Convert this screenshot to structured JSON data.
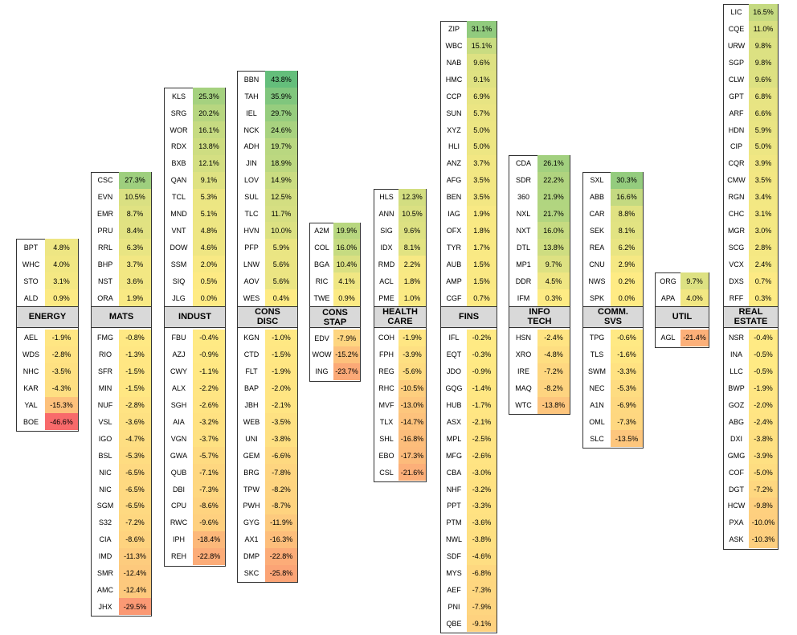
{
  "sectors": [
    {
      "label": [
        "ENERGY"
      ],
      "gainers": [
        [
          "BPT",
          4.8,
          "4.8%"
        ],
        [
          "WHC",
          4.0,
          "4.0%"
        ],
        [
          "STO",
          3.1,
          "3.1%"
        ],
        [
          "ALD",
          0.9,
          "0.9%"
        ]
      ],
      "losers": [
        [
          "AEL",
          -1.9,
          "-1.9%"
        ],
        [
          "WDS",
          -2.8,
          "-2.8%"
        ],
        [
          "NHC",
          -3.5,
          "-3.5%"
        ],
        [
          "KAR",
          -4.3,
          "-4.3%"
        ],
        [
          "YAL",
          -15.3,
          "-15.3%"
        ],
        [
          "BOE",
          -46.6,
          "-46.6%"
        ]
      ]
    },
    {
      "label": [
        "MATS"
      ],
      "gainers": [
        [
          "CSC",
          27.3,
          "27.3%"
        ],
        [
          "EVN",
          10.5,
          "10.5%"
        ],
        [
          "EMR",
          8.7,
          "8.7%"
        ],
        [
          "PRU",
          8.4,
          "8.4%"
        ],
        [
          "RRL",
          6.3,
          "6.3%"
        ],
        [
          "BHP",
          3.7,
          "3.7%"
        ],
        [
          "NST",
          3.6,
          "3.6%"
        ],
        [
          "ORA",
          1.9,
          "1.9%"
        ]
      ],
      "losers": [
        [
          "FMG",
          -0.8,
          "-0.8%"
        ],
        [
          "RIO",
          -1.3,
          "-1.3%"
        ],
        [
          "SFR",
          -1.5,
          "-1.5%"
        ],
        [
          "MIN",
          -1.5,
          "-1.5%"
        ],
        [
          "NUF",
          -2.8,
          "-2.8%"
        ],
        [
          "VSL",
          -3.6,
          "-3.6%"
        ],
        [
          "IGO",
          -4.7,
          "-4.7%"
        ],
        [
          "BSL",
          -5.3,
          "-5.3%"
        ],
        [
          "NIC",
          -6.5,
          "-6.5%"
        ],
        [
          "NIC",
          -6.5,
          "-6.5%"
        ],
        [
          "SGM",
          -6.5,
          "-6.5%"
        ],
        [
          "S32",
          -7.2,
          "-7.2%"
        ],
        [
          "CIA",
          -8.6,
          "-8.6%"
        ],
        [
          "IMD",
          -11.3,
          "-11.3%"
        ],
        [
          "SMR",
          -12.4,
          "-12.4%"
        ],
        [
          "AMC",
          -12.4,
          "-12.4%"
        ],
        [
          "JHX",
          -29.5,
          "-29.5%"
        ]
      ]
    },
    {
      "label": [
        "INDUST"
      ],
      "gainers": [
        [
          "KLS",
          25.3,
          "25.3%"
        ],
        [
          "SRG",
          20.2,
          "20.2%"
        ],
        [
          "WOR",
          16.1,
          "16.1%"
        ],
        [
          "RDX",
          13.8,
          "13.8%"
        ],
        [
          "BXB",
          12.1,
          "12.1%"
        ],
        [
          "QAN",
          9.1,
          "9.1%"
        ],
        [
          "TCL",
          5.3,
          "5.3%"
        ],
        [
          "MND",
          5.1,
          "5.1%"
        ],
        [
          "VNT",
          4.8,
          "4.8%"
        ],
        [
          "DOW",
          4.6,
          "4.6%"
        ],
        [
          "SSM",
          2.0,
          "2.0%"
        ],
        [
          "SIQ",
          0.5,
          "0.5%"
        ],
        [
          "JLG",
          0.0,
          "0.0%"
        ]
      ],
      "losers": [
        [
          "FBU",
          -0.4,
          "-0.4%"
        ],
        [
          "AZJ",
          -0.9,
          "-0.9%"
        ],
        [
          "CWY",
          -1.1,
          "-1.1%"
        ],
        [
          "ALX",
          -2.2,
          "-2.2%"
        ],
        [
          "SGH",
          -2.6,
          "-2.6%"
        ],
        [
          "AIA",
          -3.2,
          "-3.2%"
        ],
        [
          "VGN",
          -3.7,
          "-3.7%"
        ],
        [
          "GWA",
          -5.7,
          "-5.7%"
        ],
        [
          "QUB",
          -7.1,
          "-7.1%"
        ],
        [
          "DBI",
          -7.3,
          "-7.3%"
        ],
        [
          "CPU",
          -8.6,
          "-8.6%"
        ],
        [
          "RWC",
          -9.6,
          "-9.6%"
        ],
        [
          "IPH",
          -18.4,
          "-18.4%"
        ],
        [
          "REH",
          -22.8,
          "-22.8%"
        ]
      ]
    },
    {
      "label": [
        "CONS",
        "DISC"
      ],
      "gainers": [
        [
          "BBN",
          43.8,
          "43.8%"
        ],
        [
          "TAH",
          35.9,
          "35.9%"
        ],
        [
          "IEL",
          29.7,
          "29.7%"
        ],
        [
          "NCK",
          24.6,
          "24.6%"
        ],
        [
          "ADH",
          19.7,
          "19.7%"
        ],
        [
          "JIN",
          18.9,
          "18.9%"
        ],
        [
          "LOV",
          14.9,
          "14.9%"
        ],
        [
          "SUL",
          12.5,
          "12.5%"
        ],
        [
          "TLC",
          11.7,
          "11.7%"
        ],
        [
          "HVN",
          10.0,
          "10.0%"
        ],
        [
          "PFP",
          5.9,
          "5.9%"
        ],
        [
          "LNW",
          5.6,
          "5.6%"
        ],
        [
          "AOV",
          5.6,
          "5.6%"
        ],
        [
          "WES",
          0.4,
          "0.4%"
        ]
      ],
      "losers": [
        [
          "KGN",
          -1.0,
          "-1.0%"
        ],
        [
          "CTD",
          -1.5,
          "-1.5%"
        ],
        [
          "FLT",
          -1.9,
          "-1.9%"
        ],
        [
          "BAP",
          -2.0,
          "-2.0%"
        ],
        [
          "JBH",
          -2.1,
          "-2.1%"
        ],
        [
          "WEB",
          -3.5,
          "-3.5%"
        ],
        [
          "UNI",
          -3.8,
          "-3.8%"
        ],
        [
          "GEM",
          -6.6,
          "-6.6%"
        ],
        [
          "BRG",
          -7.8,
          "-7.8%"
        ],
        [
          "TPW",
          -8.2,
          "-8.2%"
        ],
        [
          "PWH",
          -8.7,
          "-8.7%"
        ],
        [
          "GYG",
          -11.9,
          "-11.9%"
        ],
        [
          "AX1",
          -16.3,
          "-16.3%"
        ],
        [
          "DMP",
          -22.8,
          "-22.8%"
        ],
        [
          "SKC",
          -25.8,
          "-25.8%"
        ]
      ]
    },
    {
      "label": [
        "CONS",
        "STAP"
      ],
      "gainers": [
        [
          "A2M",
          19.9,
          "19.9%"
        ],
        [
          "COL",
          16.0,
          "16.0%"
        ],
        [
          "BGA",
          10.4,
          "10.4%"
        ],
        [
          "RIC",
          4.1,
          "4.1%"
        ],
        [
          "TWE",
          0.9,
          "0.9%"
        ]
      ],
      "losers": [
        [
          "EDV",
          -7.9,
          "-7.9%"
        ],
        [
          "WOW",
          -15.2,
          "-15.2%"
        ],
        [
          "ING",
          -23.7,
          "-23.7%"
        ]
      ]
    },
    {
      "label": [
        "HEALTH",
        "CARE"
      ],
      "gainers": [
        [
          "HLS",
          12.3,
          "12.3%"
        ],
        [
          "ANN",
          10.5,
          "10.5%"
        ],
        [
          "SIG",
          9.6,
          "9.6%"
        ],
        [
          "IDX",
          8.1,
          "8.1%"
        ],
        [
          "RMD",
          2.2,
          "2.2%"
        ],
        [
          "ACL",
          1.8,
          "1.8%"
        ],
        [
          "PME",
          1.0,
          "1.0%"
        ]
      ],
      "losers": [
        [
          "COH",
          -1.9,
          "-1.9%"
        ],
        [
          "FPH",
          -3.9,
          "-3.9%"
        ],
        [
          "REG",
          -5.6,
          "-5.6%"
        ],
        [
          "RHC",
          -10.5,
          "-10.5%"
        ],
        [
          "MVF",
          -13.0,
          "-13.0%"
        ],
        [
          "TLX",
          -14.7,
          "-14.7%"
        ],
        [
          "SHL",
          -16.8,
          "-16.8%"
        ],
        [
          "EBO",
          -17.3,
          "-17.3%"
        ],
        [
          "CSL",
          -21.6,
          "-21.6%"
        ]
      ]
    },
    {
      "label": [
        "FINS"
      ],
      "gainers": [
        [
          "ZIP",
          31.1,
          "31.1%"
        ],
        [
          "WBC",
          15.1,
          "15.1%"
        ],
        [
          "NAB",
          9.6,
          "9.6%"
        ],
        [
          "HMC",
          9.1,
          "9.1%"
        ],
        [
          "CCP",
          6.9,
          "6.9%"
        ],
        [
          "SUN",
          5.7,
          "5.7%"
        ],
        [
          "XYZ",
          5.0,
          "5.0%"
        ],
        [
          "HLI",
          5.0,
          "5.0%"
        ],
        [
          "ANZ",
          3.7,
          "3.7%"
        ],
        [
          "AFG",
          3.5,
          "3.5%"
        ],
        [
          "BEN",
          3.5,
          "3.5%"
        ],
        [
          "IAG",
          1.9,
          "1.9%"
        ],
        [
          "OFX",
          1.8,
          "1.8%"
        ],
        [
          "TYR",
          1.7,
          "1.7%"
        ],
        [
          "AUB",
          1.5,
          "1.5%"
        ],
        [
          "AMP",
          1.5,
          "1.5%"
        ],
        [
          "CGF",
          0.7,
          "0.7%"
        ]
      ],
      "losers": [
        [
          "IFL",
          -0.2,
          "-0.2%"
        ],
        [
          "EQT",
          -0.3,
          "-0.3%"
        ],
        [
          "JDO",
          -0.9,
          "-0.9%"
        ],
        [
          "GQG",
          -1.4,
          "-1.4%"
        ],
        [
          "HUB",
          -1.7,
          "-1.7%"
        ],
        [
          "ASX",
          -2.1,
          "-2.1%"
        ],
        [
          "MPL",
          -2.5,
          "-2.5%"
        ],
        [
          "MFG",
          -2.6,
          "-2.6%"
        ],
        [
          "CBA",
          -3.0,
          "-3.0%"
        ],
        [
          "NHF",
          -3.2,
          "-3.2%"
        ],
        [
          "PPT",
          -3.3,
          "-3.3%"
        ],
        [
          "PTM",
          -3.6,
          "-3.6%"
        ],
        [
          "NWL",
          -3.8,
          "-3.8%"
        ],
        [
          "SDF",
          -4.6,
          "-4.6%"
        ],
        [
          "MYS",
          -6.8,
          "-6.8%"
        ],
        [
          "AEF",
          -7.3,
          "-7.3%"
        ],
        [
          "PNI",
          -7.9,
          "-7.9%"
        ],
        [
          "QBE",
          -9.1,
          "-9.1%"
        ]
      ]
    },
    {
      "label": [
        "INFO",
        "TECH"
      ],
      "gainers": [
        [
          "CDA",
          26.1,
          "26.1%"
        ],
        [
          "SDR",
          22.2,
          "22.2%"
        ],
        [
          "360",
          21.9,
          "21.9%"
        ],
        [
          "NXL",
          21.7,
          "21.7%"
        ],
        [
          "NXT",
          16.0,
          "16.0%"
        ],
        [
          "DTL",
          13.8,
          "13.8%"
        ],
        [
          "MP1",
          9.7,
          "9.7%"
        ],
        [
          "DDR",
          4.5,
          "4.5%"
        ],
        [
          "IFM",
          0.3,
          "0.3%"
        ]
      ],
      "losers": [
        [
          "HSN",
          -2.4,
          "-2.4%"
        ],
        [
          "XRO",
          -4.8,
          "-4.8%"
        ],
        [
          "IRE",
          -7.2,
          "-7.2%"
        ],
        [
          "MAQ",
          -8.2,
          "-8.2%"
        ],
        [
          "WTC",
          -13.8,
          "-13.8%"
        ]
      ]
    },
    {
      "label": [
        "COMM.",
        "SVS"
      ],
      "gainers": [
        [
          "SXL",
          30.3,
          "30.3%"
        ],
        [
          "ABB",
          16.6,
          "16.6%"
        ],
        [
          "CAR",
          8.8,
          "8.8%"
        ],
        [
          "SEK",
          8.1,
          "8.1%"
        ],
        [
          "REA",
          6.2,
          "6.2%"
        ],
        [
          "CNU",
          2.9,
          "2.9%"
        ],
        [
          "NWS",
          0.2,
          "0.2%"
        ],
        [
          "SPK",
          0.0,
          "0.0%"
        ]
      ],
      "losers": [
        [
          "TPG",
          -0.6,
          "-0.6%"
        ],
        [
          "TLS",
          -1.6,
          "-1.6%"
        ],
        [
          "SWM",
          -3.3,
          "-3.3%"
        ],
        [
          "NEC",
          -5.3,
          "-5.3%"
        ],
        [
          "A1N",
          -6.9,
          "-6.9%"
        ],
        [
          "OML",
          -7.3,
          "-7.3%"
        ],
        [
          "SLC",
          -13.5,
          "-13.5%"
        ]
      ]
    },
    {
      "label": [
        "UTIL"
      ],
      "gainers": [
        [
          "ORG",
          9.7,
          "9.7%"
        ],
        [
          "APA",
          4.0,
          "4.0%"
        ]
      ],
      "losers": [
        [
          "AGL",
          -21.4,
          "-21.4%"
        ]
      ]
    },
    {
      "label": [
        "REAL",
        "ESTATE"
      ],
      "gainers": [
        [
          "LIC",
          16.5,
          "16.5%"
        ],
        [
          "CQE",
          11.0,
          "11.0%"
        ],
        [
          "URW",
          9.8,
          "9.8%"
        ],
        [
          "SGP",
          9.8,
          "9.8%"
        ],
        [
          "CLW",
          9.6,
          "9.6%"
        ],
        [
          "GPT",
          6.8,
          "6.8%"
        ],
        [
          "ARF",
          6.6,
          "6.6%"
        ],
        [
          "HDN",
          5.9,
          "5.9%"
        ],
        [
          "CIP",
          5.0,
          "5.0%"
        ],
        [
          "CQR",
          3.9,
          "3.9%"
        ],
        [
          "CMW",
          3.5,
          "3.5%"
        ],
        [
          "RGN",
          3.4,
          "3.4%"
        ],
        [
          "CHC",
          3.1,
          "3.1%"
        ],
        [
          "MGR",
          3.0,
          "3.0%"
        ],
        [
          "SCG",
          2.8,
          "2.8%"
        ],
        [
          "VCX",
          2.4,
          "2.4%"
        ],
        [
          "DXS",
          0.7,
          "0.7%"
        ],
        [
          "RFF",
          0.3,
          "0.3%"
        ]
      ],
      "losers": [
        [
          "NSR",
          -0.4,
          "-0.4%"
        ],
        [
          "INA",
          -0.5,
          "-0.5%"
        ],
        [
          "LLC",
          -0.5,
          "-0.5%"
        ],
        [
          "BWP",
          -1.9,
          "-1.9%"
        ],
        [
          "GOZ",
          -2.0,
          "-2.0%"
        ],
        [
          "ABG",
          -2.4,
          "-2.4%"
        ],
        [
          "DXI",
          -3.8,
          "-3.8%"
        ],
        [
          "GMG",
          -3.9,
          "-3.9%"
        ],
        [
          "COF",
          -5.0,
          "-5.0%"
        ],
        [
          "DGT",
          -7.2,
          "-7.2%"
        ],
        [
          "HCW",
          -9.8,
          "-9.8%"
        ],
        [
          "PXA",
          -10.0,
          "-10.0%"
        ],
        [
          "ASK",
          -10.3,
          "-10.3%"
        ]
      ]
    }
  ]
}
